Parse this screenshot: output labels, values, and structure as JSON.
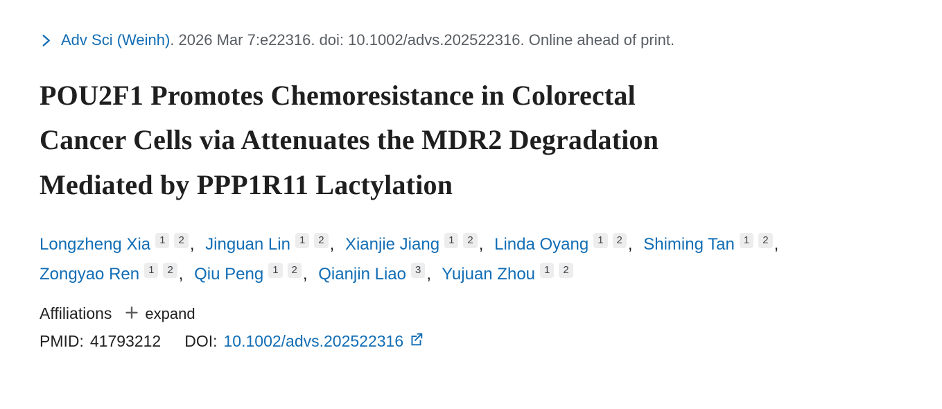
{
  "citation": {
    "journal_link": "Adv Sci (Weinh)",
    "rest": ". 2026 Mar 7:e22316. doi: 10.1002/advs.202522316. Online ahead of print."
  },
  "article": {
    "title": "POU2F1 Promotes Chemoresistance in Colorectal Cancer Cells via Attenuates the MDR2 Degradation Mediated by PPP1R11 Lactylation",
    "title_display": "POU2F1 Promotes Chemoresistance in Colorectal\nCancer Cells via Attenuates the MDR2 Degradation\nMediated by PPP1R11 Lactylation"
  },
  "authors": [
    {
      "name": "Longzheng Xia",
      "sups": [
        "1",
        "2"
      ]
    },
    {
      "name": "Jinguan Lin",
      "sups": [
        "1",
        "2"
      ]
    },
    {
      "name": "Xianjie Jiang",
      "sups": [
        "1",
        "2"
      ]
    },
    {
      "name": "Linda Oyang",
      "sups": [
        "1",
        "2"
      ]
    },
    {
      "name": "Shiming Tan",
      "sups": [
        "1",
        "2"
      ]
    },
    {
      "name": "Zongyao Ren",
      "sups": [
        "1",
        "2"
      ]
    },
    {
      "name": "Qiu Peng",
      "sups": [
        "1",
        "2"
      ]
    },
    {
      "name": "Qianjin Liao",
      "sups": [
        "3"
      ]
    },
    {
      "name": "Yujuan Zhou",
      "sups": [
        "1",
        "2"
      ]
    }
  ],
  "affiliations": {
    "label": "Affiliations",
    "expand_label": "expand"
  },
  "identifiers": {
    "pmid_label": "PMID:",
    "pmid_value": "41793212",
    "doi_label": "DOI:",
    "doi_link_text": "10.1002/advs.202522316"
  },
  "icons": {
    "chevron_right": "chevron-right-icon",
    "plus": "plus-icon",
    "external_link": "external-link-icon"
  },
  "colors": {
    "link": "#116db5",
    "citation_gray": "#585d63",
    "title_dark": "#1f1f1f",
    "text_dark": "#212121",
    "badge_bg": "#ededed",
    "badge_text": "#3f4348",
    "icon_gray": "#5f5f5f"
  }
}
